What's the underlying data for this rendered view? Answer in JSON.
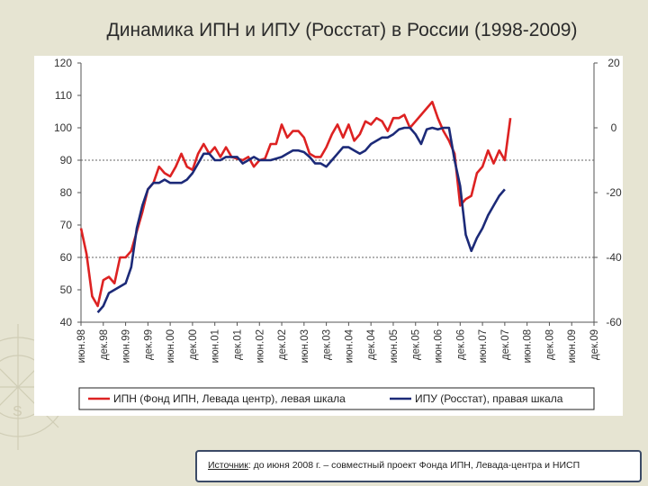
{
  "slide": {
    "title": "Динамика ИПН и ИПУ (Росстат) в России (1998-2009)",
    "source_label": "Источник",
    "source_text": ": до июня 2008 г. – совместный проект Фонда ИПН, Левада-центра и НИСП"
  },
  "colors": {
    "ipn": "#dd2222",
    "ipu": "#1c2a78",
    "background": "#e6e4d2"
  },
  "chart_data": {
    "type": "line",
    "title": "Динамика ИПН и ИПУ (Росстат) в России (1998-2009)",
    "x_ticks": [
      "июн.98",
      "дек.98",
      "июн.99",
      "дек.99",
      "июн.00",
      "дек.00",
      "июн.01",
      "дек.01",
      "июн.02",
      "дек.02",
      "июн.03",
      "дек.03",
      "июн.04",
      "дек.04",
      "июн.05",
      "дек.05",
      "июн.06",
      "дек.06",
      "июн.07",
      "дек.07",
      "июн.08",
      "дек.08",
      "июн.09",
      "дек.09"
    ],
    "x_range": [
      0,
      23
    ],
    "y_left": {
      "range": [
        40,
        120
      ],
      "ticks": [
        40,
        50,
        60,
        70,
        80,
        90,
        100,
        110,
        120
      ]
    },
    "y_right": {
      "range": [
        -60,
        20
      ],
      "ticks": [
        -60,
        -40,
        -20,
        0,
        20
      ],
      "tick_labels": [
        "-60",
        "-40",
        "-20",
        "0",
        "20"
      ]
    },
    "gridlines_left": [
      60,
      90
    ],
    "grid": "dashed horizontal",
    "legend_position": "bottom",
    "series": [
      {
        "name": "ИПН (Фонд ИПН, Левада центр), левая шкала",
        "axis": "left",
        "color": "#dd2222",
        "points": [
          [
            0,
            69
          ],
          [
            0.25,
            61
          ],
          [
            0.5,
            48
          ],
          [
            0.75,
            45
          ],
          [
            1,
            53
          ],
          [
            1.25,
            54
          ],
          [
            1.5,
            52
          ],
          [
            1.75,
            60
          ],
          [
            2,
            60
          ],
          [
            2.25,
            62
          ],
          [
            2.5,
            68
          ],
          [
            2.75,
            74
          ],
          [
            3,
            81
          ],
          [
            3.25,
            83
          ],
          [
            3.5,
            88
          ],
          [
            3.75,
            86
          ],
          [
            4,
            85
          ],
          [
            4.25,
            88
          ],
          [
            4.5,
            92
          ],
          [
            4.75,
            88
          ],
          [
            5,
            87
          ],
          [
            5.25,
            92
          ],
          [
            5.5,
            95
          ],
          [
            5.75,
            92
          ],
          [
            6,
            94
          ],
          [
            6.25,
            91
          ],
          [
            6.5,
            94
          ],
          [
            6.75,
            91
          ],
          [
            7,
            90.5
          ],
          [
            7.25,
            90
          ],
          [
            7.5,
            91
          ],
          [
            7.75,
            88
          ],
          [
            8,
            90
          ],
          [
            8.25,
            90.5
          ],
          [
            8.5,
            95
          ],
          [
            8.75,
            95
          ],
          [
            9,
            101
          ],
          [
            9.25,
            97
          ],
          [
            9.5,
            99
          ],
          [
            9.75,
            99
          ],
          [
            10,
            97
          ],
          [
            10.25,
            92
          ],
          [
            10.5,
            91
          ],
          [
            10.75,
            91
          ],
          [
            11,
            94
          ],
          [
            11.25,
            98
          ],
          [
            11.5,
            101
          ],
          [
            11.75,
            97
          ],
          [
            12,
            101
          ],
          [
            12.25,
            96
          ],
          [
            12.5,
            98
          ],
          [
            12.75,
            102
          ],
          [
            13,
            101
          ],
          [
            13.25,
            103
          ],
          [
            13.5,
            102
          ],
          [
            13.75,
            99
          ],
          [
            14,
            103
          ],
          [
            14.25,
            103
          ],
          [
            14.5,
            104
          ],
          [
            14.75,
            100
          ],
          [
            15,
            102
          ],
          [
            15.25,
            104
          ],
          [
            15.5,
            106
          ],
          [
            15.75,
            108
          ],
          [
            16,
            103
          ],
          [
            16.25,
            99
          ],
          [
            16.5,
            96
          ],
          [
            16.75,
            92
          ],
          [
            17,
            76
          ],
          [
            17.25,
            78
          ],
          [
            17.5,
            79
          ],
          [
            17.75,
            86
          ],
          [
            18,
            88
          ],
          [
            18.25,
            93
          ],
          [
            18.5,
            89
          ],
          [
            18.75,
            93
          ],
          [
            19,
            90
          ],
          [
            19.25,
            103
          ]
        ]
      },
      {
        "name": "ИПУ (Росстат), правая шкала",
        "axis": "right",
        "color": "#1c2a78",
        "points": [
          [
            0.75,
            -57
          ],
          [
            1,
            -55
          ],
          [
            1.25,
            -51
          ],
          [
            1.5,
            -50
          ],
          [
            1.75,
            -49
          ],
          [
            2,
            -48
          ],
          [
            2.25,
            -43
          ],
          [
            2.5,
            -31
          ],
          [
            2.75,
            -24
          ],
          [
            3,
            -19
          ],
          [
            3.25,
            -17
          ],
          [
            3.5,
            -17
          ],
          [
            3.75,
            -16
          ],
          [
            4,
            -17
          ],
          [
            4.25,
            -17
          ],
          [
            4.5,
            -17
          ],
          [
            4.75,
            -16
          ],
          [
            5,
            -14
          ],
          [
            5.25,
            -11
          ],
          [
            5.5,
            -8
          ],
          [
            5.75,
            -8
          ],
          [
            6,
            -10
          ],
          [
            6.25,
            -10
          ],
          [
            6.5,
            -9
          ],
          [
            6.75,
            -9
          ],
          [
            7,
            -9
          ],
          [
            7.25,
            -11
          ],
          [
            7.5,
            -10
          ],
          [
            7.75,
            -9
          ],
          [
            8,
            -10
          ],
          [
            8.25,
            -10
          ],
          [
            8.5,
            -10
          ],
          [
            8.75,
            -9.5
          ],
          [
            9,
            -9
          ],
          [
            9.25,
            -8
          ],
          [
            9.5,
            -7
          ],
          [
            9.75,
            -7
          ],
          [
            10,
            -7.5
          ],
          [
            10.25,
            -9
          ],
          [
            10.5,
            -11
          ],
          [
            10.75,
            -11
          ],
          [
            11,
            -12
          ],
          [
            11.25,
            -10
          ],
          [
            11.5,
            -8
          ],
          [
            11.75,
            -6
          ],
          [
            12,
            -6
          ],
          [
            12.25,
            -7
          ],
          [
            12.5,
            -8
          ],
          [
            12.75,
            -7
          ],
          [
            13,
            -5
          ],
          [
            13.25,
            -4
          ],
          [
            13.5,
            -3
          ],
          [
            13.75,
            -3
          ],
          [
            14,
            -2
          ],
          [
            14.25,
            -0.5
          ],
          [
            14.5,
            0
          ],
          [
            14.75,
            0
          ],
          [
            15,
            -2
          ],
          [
            15.25,
            -5
          ],
          [
            15.5,
            -0.5
          ],
          [
            15.75,
            0
          ],
          [
            16,
            -0.5
          ],
          [
            16.25,
            0
          ],
          [
            16.5,
            0
          ],
          [
            16.75,
            -10
          ],
          [
            17,
            -18
          ],
          [
            17.25,
            -33
          ],
          [
            17.5,
            -38
          ],
          [
            17.75,
            -34
          ],
          [
            18,
            -31
          ],
          [
            18.25,
            -27
          ],
          [
            18.5,
            -24
          ],
          [
            18.75,
            -21
          ],
          [
            19,
            -19
          ]
        ]
      }
    ]
  }
}
